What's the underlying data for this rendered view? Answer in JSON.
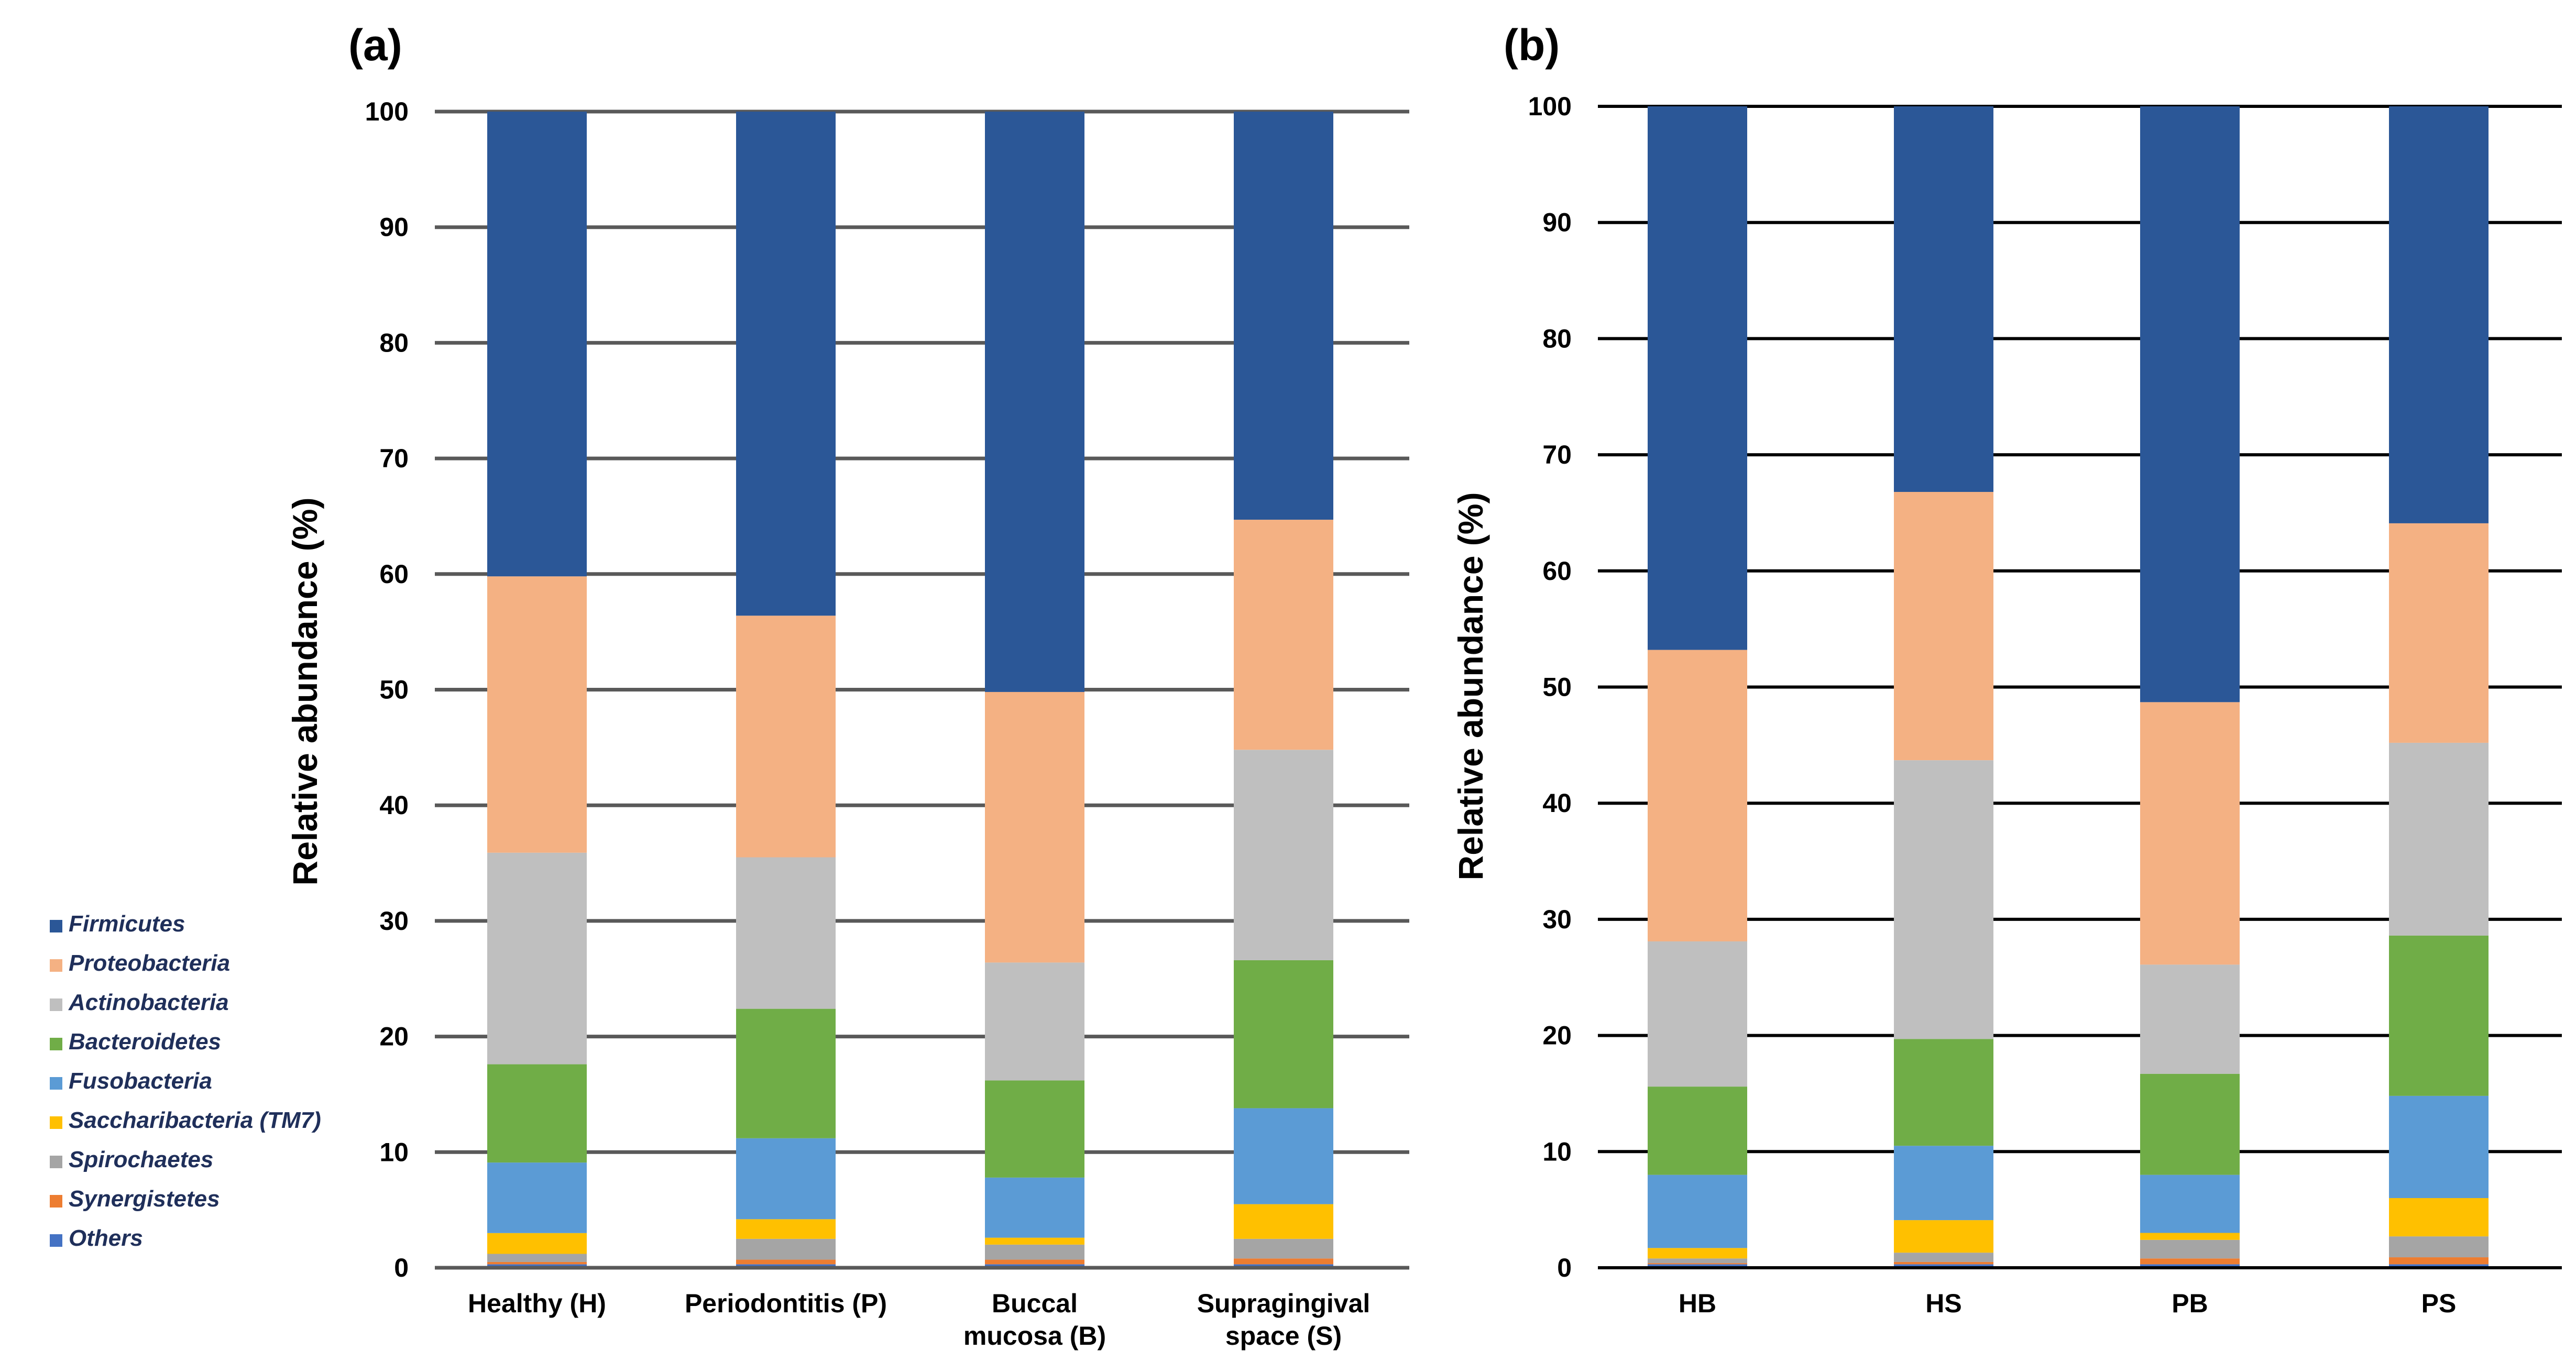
{
  "legend": [
    {
      "name": "Firmicutes",
      "color": "#2b5797"
    },
    {
      "name": "Proteobacteria",
      "color": "#f4b183"
    },
    {
      "name": "Actinobacteria",
      "color": "#bfbfbf"
    },
    {
      "name": "Bacteroidetes",
      "color": "#70ad47"
    },
    {
      "name": "Fusobacteria",
      "color": "#5b9bd5"
    },
    {
      "name": "Saccharibacteria (TM7)",
      "color": "#ffc000"
    },
    {
      "name": "Spirochaetes",
      "color": "#a5a5a5"
    },
    {
      "name": "Synergistetes",
      "color": "#ed7d31"
    },
    {
      "name": "Others",
      "color": "#4472c4"
    }
  ],
  "chart_data": [
    {
      "type": "bar",
      "stacked": true,
      "panel_label": "(a)",
      "ylabel": "Relative abundance (%)",
      "ylim": [
        0,
        100
      ],
      "yticks": [
        "0",
        "10",
        "20",
        "30",
        "40",
        "50",
        "60",
        "70",
        "80",
        "90",
        "100"
      ],
      "categories": [
        [
          "Healthy (H)"
        ],
        [
          "Periodontitis (P)"
        ],
        [
          "Buccal",
          "mucosa (B)"
        ],
        [
          "Supragingival",
          "space (S)"
        ]
      ],
      "series": [
        {
          "name": "Others",
          "values": [
            0.3,
            0.3,
            0.3,
            0.3
          ]
        },
        {
          "name": "Synergistetes",
          "values": [
            0.2,
            0.4,
            0.4,
            0.5
          ]
        },
        {
          "name": "Spirochaetes",
          "values": [
            0.7,
            1.8,
            1.3,
            1.7
          ]
        },
        {
          "name": "Saccharibacteria (TM7)",
          "values": [
            1.8,
            1.7,
            0.6,
            3.0
          ]
        },
        {
          "name": "Fusobacteria",
          "values": [
            6.1,
            7.0,
            5.2,
            8.3
          ]
        },
        {
          "name": "Bacteroidetes",
          "values": [
            8.5,
            11.2,
            8.4,
            12.8
          ]
        },
        {
          "name": "Actinobacteria",
          "values": [
            18.3,
            13.1,
            10.2,
            18.2
          ]
        },
        {
          "name": "Proteobacteria",
          "values": [
            23.9,
            20.9,
            23.4,
            19.9
          ]
        },
        {
          "name": "Firmicutes",
          "values": [
            40.2,
            43.6,
            50.2,
            35.3
          ]
        }
      ]
    },
    {
      "type": "bar",
      "stacked": true,
      "panel_label": "(b)",
      "ylabel": "Relative abundance (%)",
      "ylim": [
        0,
        100
      ],
      "yticks": [
        "0",
        "10",
        "20",
        "30",
        "40",
        "50",
        "60",
        "70",
        "80",
        "90",
        "100"
      ],
      "categories": [
        [
          "HB"
        ],
        [
          "HS"
        ],
        [
          "PB"
        ],
        [
          "PS"
        ]
      ],
      "series": [
        {
          "name": "Others",
          "values": [
            0.3,
            0.3,
            0.3,
            0.3
          ]
        },
        {
          "name": "Synergistetes",
          "values": [
            0.1,
            0.2,
            0.5,
            0.6
          ]
        },
        {
          "name": "Spirochaetes",
          "values": [
            0.4,
            0.8,
            1.6,
            1.8
          ]
        },
        {
          "name": "Saccharibacteria (TM7)",
          "values": [
            0.9,
            2.8,
            0.6,
            3.3
          ]
        },
        {
          "name": "Fusobacteria",
          "values": [
            6.3,
            6.4,
            5.0,
            8.8
          ]
        },
        {
          "name": "Bacteroidetes",
          "values": [
            7.6,
            9.2,
            8.7,
            13.8
          ]
        },
        {
          "name": "Actinobacteria",
          "values": [
            12.5,
            24.0,
            9.4,
            16.6
          ]
        },
        {
          "name": "Proteobacteria",
          "values": [
            25.1,
            23.1,
            22.6,
            18.9
          ]
        },
        {
          "name": "Firmicutes",
          "values": [
            46.8,
            33.2,
            51.3,
            35.9
          ]
        }
      ]
    }
  ]
}
